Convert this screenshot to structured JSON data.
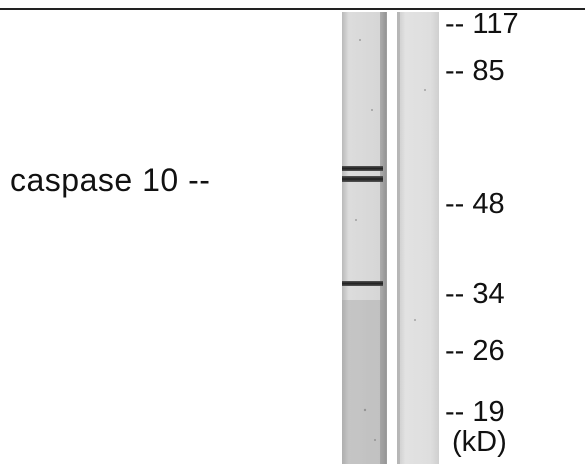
{
  "band": {
    "label": "caspase 10 --"
  },
  "markers": [
    {
      "label": "-- 117",
      "kd": 117
    },
    {
      "label": "-- 85",
      "kd": 85
    },
    {
      "label": "-- 48",
      "kd": 48
    },
    {
      "label": "-- 34",
      "kd": 34
    },
    {
      "label": "-- 26",
      "kd": 26
    },
    {
      "label": "-- 19",
      "kd": 19
    }
  ],
  "unit_label": "(kD)",
  "colors": {
    "lane_background": "#d6d6d6",
    "band": "#2a2a2a",
    "text": "#111111"
  }
}
